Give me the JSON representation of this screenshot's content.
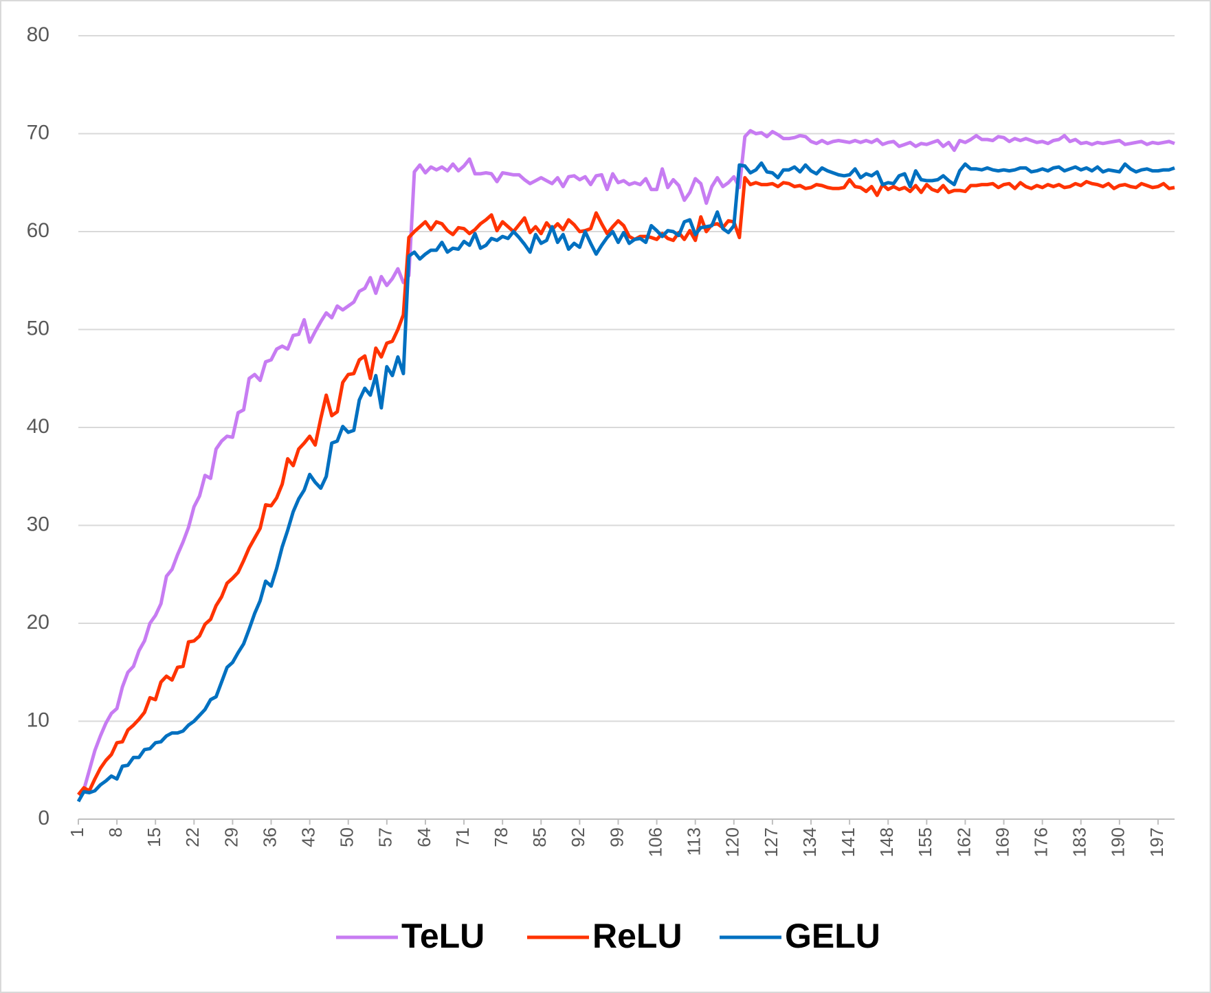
{
  "chart_data": {
    "type": "line",
    "x": [
      1,
      2,
      3,
      4,
      5,
      6,
      7,
      8,
      9,
      10,
      11,
      12,
      13,
      14,
      15,
      16,
      17,
      18,
      19,
      20,
      21,
      22,
      23,
      24,
      25,
      26,
      27,
      28,
      29,
      30,
      31,
      32,
      33,
      34,
      35,
      36,
      37,
      38,
      39,
      40,
      41,
      42,
      43,
      44,
      45,
      46,
      47,
      48,
      49,
      50,
      51,
      52,
      53,
      54,
      55,
      56,
      57,
      58,
      59,
      60,
      61,
      62,
      63,
      64,
      65,
      66,
      67,
      68,
      69,
      70,
      71,
      72,
      73,
      74,
      75,
      76,
      77,
      78,
      79,
      80,
      81,
      82,
      83,
      84,
      85,
      86,
      87,
      88,
      89,
      90,
      91,
      92,
      93,
      94,
      95,
      96,
      97,
      98,
      99,
      100,
      101,
      102,
      103,
      104,
      105,
      106,
      107,
      108,
      109,
      110,
      111,
      112,
      113,
      114,
      115,
      116,
      117,
      118,
      119,
      120,
      121,
      122,
      123,
      124,
      125,
      126,
      127,
      128,
      129,
      130,
      131,
      132,
      133,
      134,
      135,
      136,
      137,
      138,
      139,
      140,
      141,
      142,
      143,
      144,
      145,
      146,
      147,
      148,
      149,
      150,
      151,
      152,
      153,
      154,
      155,
      156,
      157,
      158,
      159,
      160,
      161,
      162,
      163,
      164,
      165,
      166,
      167,
      168,
      169,
      170,
      171,
      172,
      173,
      174,
      175,
      176,
      177,
      178,
      179,
      180,
      181,
      182,
      183,
      184,
      185,
      186,
      187,
      188,
      189,
      190,
      191,
      192,
      193,
      194,
      195,
      196,
      197,
      198,
      199,
      200
    ],
    "xlim": [
      1,
      200
    ],
    "xticks": [
      1,
      8,
      15,
      22,
      29,
      36,
      43,
      50,
      57,
      64,
      71,
      78,
      85,
      92,
      99,
      106,
      113,
      120,
      127,
      134,
      141,
      148,
      155,
      162,
      169,
      176,
      183,
      190,
      197
    ],
    "ylim": [
      0,
      80
    ],
    "yticks": [
      0,
      10,
      20,
      30,
      40,
      50,
      60,
      70,
      80
    ],
    "grid": true,
    "legend": "bottom",
    "series": [
      {
        "name": "TeLU",
        "color": "#c77cf2",
        "values": [
          2.5,
          3,
          5,
          7,
          8.5,
          9.8,
          10.8,
          11.3,
          13.5,
          15,
          15.6,
          17.2,
          18.2,
          20,
          20.8,
          22,
          24.8,
          25.5,
          27,
          28.3,
          29.8,
          31.9,
          33,
          35.1,
          34.8,
          37.8,
          38.6,
          39.1,
          39,
          41.5,
          41.8,
          45,
          45.4,
          44.8,
          46.7,
          46.9,
          48,
          48.3,
          48,
          49.4,
          49.5,
          51,
          48.7,
          49.8,
          50.8,
          51.7,
          51.2,
          52.4,
          52,
          52.4,
          52.8,
          53.9,
          54.2,
          55.3,
          53.7,
          55.4,
          54.5,
          55.2,
          56.2,
          54.8,
          55.5,
          66.1,
          66.8,
          66,
          66.6,
          66.3,
          66.6,
          66.2,
          66.9,
          66.2,
          66.7,
          67.4,
          65.9,
          65.9,
          66,
          65.9,
          65.1,
          66,
          65.9,
          65.8,
          65.8,
          65.3,
          64.9,
          65.2,
          65.5,
          65.2,
          64.9,
          65.5,
          64.6,
          65.6,
          65.7,
          65.3,
          65.6,
          64.8,
          65.7,
          65.8,
          64.3,
          65.9,
          65,
          65.2,
          64.8,
          65,
          64.8,
          65.4,
          64.3,
          64.3,
          66.4,
          64.5,
          65.3,
          64.7,
          63.2,
          64,
          65.4,
          64.9,
          62.9,
          64.6,
          65.5,
          64.6,
          65,
          65.6,
          64.5,
          69.7,
          70.3,
          70,
          70.1,
          69.7,
          70.2,
          69.9,
          69.5,
          69.5,
          69.6,
          69.8,
          69.7,
          69.2,
          69,
          69.3,
          69,
          69.2,
          69.3,
          69.2,
          69.1,
          69.3,
          69.1,
          69.3,
          69.1,
          69.4,
          68.9,
          69.1,
          69.2,
          68.7,
          68.9,
          69.1,
          68.7,
          69,
          68.9,
          69.1,
          69.3,
          68.7,
          69.1,
          68.3,
          69.3,
          69.1,
          69.4,
          69.8,
          69.4,
          69.4,
          69.3,
          69.7,
          69.6,
          69.2,
          69.5,
          69.3,
          69.5,
          69.3,
          69.1,
          69.2,
          69,
          69.3,
          69.4,
          69.8,
          69.2,
          69.4,
          69,
          69.1,
          68.9,
          69.1,
          69,
          69.1,
          69.2,
          69.3,
          68.9,
          69,
          69.1,
          69.2,
          68.9,
          69.1,
          69,
          69.1,
          69.2,
          69
        ]
      },
      {
        "name": "ReLU",
        "color": "#ff3300",
        "values": [
          2.5,
          3.2,
          2.9,
          4.1,
          5.2,
          6,
          6.6,
          7.8,
          7.9,
          9.1,
          9.6,
          10.2,
          10.9,
          12.4,
          12.2,
          14,
          14.6,
          14.2,
          15.5,
          15.6,
          18.1,
          18.2,
          18.7,
          19.9,
          20.4,
          21.8,
          22.7,
          24.1,
          24.6,
          25.2,
          26.4,
          27.7,
          28.7,
          29.7,
          32.1,
          32,
          32.8,
          34.2,
          36.8,
          36.1,
          37.8,
          38.4,
          39.1,
          38.2,
          40.9,
          43.3,
          41.2,
          41.6,
          44.6,
          45.4,
          45.5,
          46.9,
          47.3,
          45,
          48.1,
          47.2,
          48.6,
          48.8,
          50,
          51.5,
          59.4,
          60,
          60.5,
          61,
          60.2,
          61,
          60.8,
          60.1,
          59.7,
          60.4,
          60.3,
          59.8,
          60.2,
          60.8,
          61.2,
          61.7,
          60.1,
          61,
          60.5,
          60,
          60.7,
          61.4,
          59.9,
          60.5,
          59.8,
          60.9,
          60.2,
          60.8,
          60.2,
          61.2,
          60.7,
          60,
          60.1,
          60.3,
          61.9,
          60.8,
          59.8,
          60.5,
          61.1,
          60.6,
          59.5,
          59.2,
          59.5,
          59.5,
          59.4,
          59.2,
          59.8,
          59.3,
          59.1,
          59.9,
          59.2,
          60.1,
          59.1,
          61.5,
          60,
          60.7,
          60.8,
          60.4,
          61.1,
          61,
          59.4,
          65.5,
          64.8,
          65,
          64.8,
          64.8,
          64.9,
          64.6,
          65,
          64.9,
          64.6,
          64.7,
          64.4,
          64.5,
          64.8,
          64.7,
          64.5,
          64.4,
          64.4,
          64.5,
          65.3,
          64.6,
          64.5,
          64.1,
          64.6,
          63.7,
          64.8,
          64.3,
          64.6,
          64.3,
          64.5,
          64.1,
          64.7,
          64,
          64.8,
          64.3,
          64.1,
          64.7,
          64,
          64.2,
          64.2,
          64.1,
          64.7,
          64.7,
          64.8,
          64.8,
          64.9,
          64.5,
          64.8,
          64.9,
          64.4,
          65,
          64.6,
          64.4,
          64.7,
          64.5,
          64.8,
          64.6,
          64.8,
          64.5,
          64.6,
          64.9,
          64.7,
          65.1,
          64.9,
          64.8,
          64.6,
          64.9,
          64.4,
          64.7,
          64.8,
          64.6,
          64.5,
          64.9,
          64.7,
          64.5,
          64.6,
          64.9,
          64.4,
          64.5
        ]
      },
      {
        "name": "GELU",
        "color": "#0070c0",
        "values": [
          1.8,
          2.8,
          2.7,
          2.9,
          3.5,
          3.9,
          4.4,
          4.1,
          5.4,
          5.5,
          6.3,
          6.3,
          7.1,
          7.2,
          7.8,
          7.9,
          8.5,
          8.8,
          8.8,
          9,
          9.6,
          10,
          10.6,
          11.2,
          12.2,
          12.5,
          14,
          15.5,
          16,
          17,
          17.9,
          19.4,
          21,
          22.3,
          24.3,
          23.8,
          25.6,
          27.8,
          29.5,
          31.4,
          32.7,
          33.6,
          35.2,
          34.4,
          33.8,
          35,
          38.4,
          38.6,
          40.1,
          39.5,
          39.7,
          42.8,
          44,
          43.3,
          45.3,
          42,
          46.2,
          45.3,
          47.2,
          45.5,
          57.5,
          57.9,
          57.2,
          57.7,
          58.1,
          58.1,
          58.9,
          57.9,
          58.3,
          58.2,
          59,
          58.6,
          59.8,
          58.3,
          58.6,
          59.3,
          59.1,
          59.5,
          59.3,
          60,
          59.4,
          58.7,
          57.9,
          59.7,
          58.8,
          59.1,
          60.5,
          58.9,
          59.7,
          58.2,
          58.8,
          58.4,
          60,
          58.8,
          57.7,
          58.6,
          59.4,
          60,
          58.9,
          59.9,
          58.8,
          59.2,
          59.3,
          58.9,
          60.6,
          60.1,
          59.5,
          60.1,
          60,
          59.6,
          61,
          61.2,
          59.7,
          60.4,
          60.5,
          60.6,
          62,
          60.3,
          59.9,
          60.6,
          66.8,
          66.7,
          66,
          66.3,
          67,
          66.1,
          66,
          65.5,
          66.3,
          66.3,
          66.6,
          66.1,
          66.8,
          66.2,
          65.9,
          66.5,
          66.2,
          66,
          65.8,
          65.7,
          65.8,
          66.4,
          65.5,
          65.9,
          65.7,
          66.1,
          64.8,
          65,
          64.9,
          65.7,
          65.9,
          64.6,
          66.2,
          65.3,
          65.2,
          65.2,
          65.3,
          65.7,
          65.2,
          64.8,
          66.2,
          66.9,
          66.4,
          66.4,
          66.3,
          66.5,
          66.3,
          66.2,
          66.3,
          66.2,
          66.3,
          66.5,
          66.5,
          66.1,
          66.2,
          66.4,
          66.2,
          66.5,
          66.6,
          66.2,
          66.4,
          66.6,
          66.3,
          66.5,
          66.2,
          66.6,
          66.1,
          66.3,
          66.2,
          66.1,
          66.9,
          66.4,
          66.1,
          66.3,
          66.4,
          66.2,
          66.2,
          66.3,
          66.3,
          66.5
        ]
      }
    ]
  }
}
